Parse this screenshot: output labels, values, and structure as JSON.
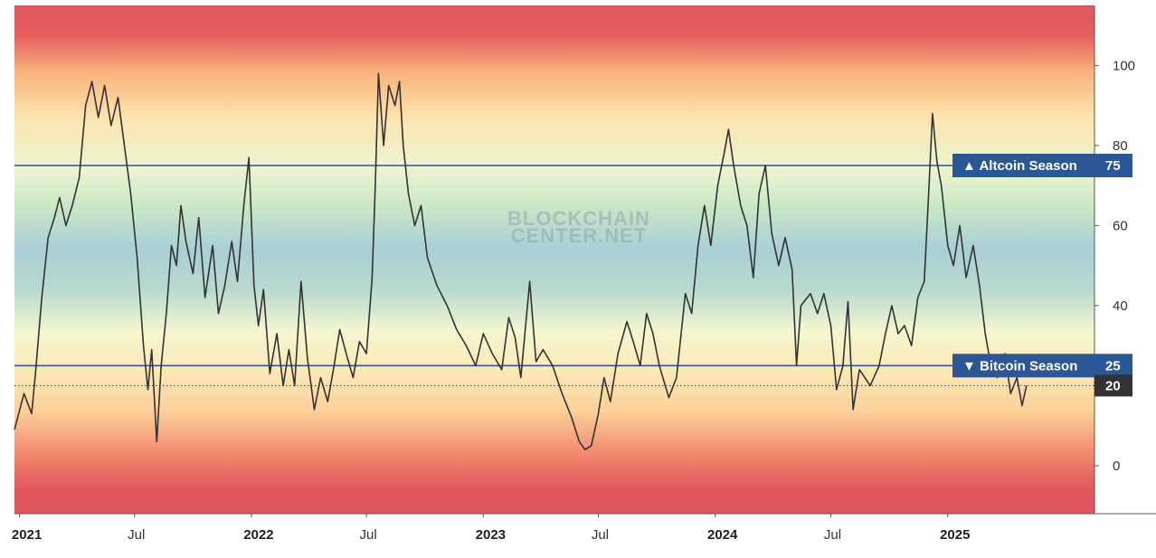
{
  "chart_data": {
    "type": "line",
    "watermark": [
      "BLOCKCHAIN",
      "CENTER.NET"
    ],
    "ylim": [
      -12,
      115
    ],
    "y_ticks": [
      0,
      20,
      40,
      60,
      80,
      100
    ],
    "x_range": [
      "2020-12-24",
      "2025-08-20"
    ],
    "x_ticks": [
      {
        "label": "2021",
        "date": "2021-01-01",
        "year": true
      },
      {
        "label": "Jul",
        "date": "2021-07-01",
        "year": false
      },
      {
        "label": "2022",
        "date": "2022-01-01",
        "year": true
      },
      {
        "label": "Jul",
        "date": "2022-07-01",
        "year": false
      },
      {
        "label": "2023",
        "date": "2023-01-01",
        "year": true
      },
      {
        "label": "Jul",
        "date": "2023-07-01",
        "year": false
      },
      {
        "label": "2024",
        "date": "2024-01-01",
        "year": true
      },
      {
        "label": "Jul",
        "date": "2024-07-01",
        "year": false
      },
      {
        "label": "2025",
        "date": "2025-01-01",
        "year": true
      }
    ],
    "thresholds": [
      {
        "name": "Altcoin Season",
        "symbol": "▲",
        "value": 75,
        "color": "#2b5797"
      },
      {
        "name": "Bitcoin Season",
        "symbol": "▼",
        "value": 25,
        "color": "#2b5797"
      }
    ],
    "current": {
      "value": 20,
      "label": "20"
    },
    "series": [
      {
        "color": "#333333",
        "points": [
          [
            "2020-12-24",
            9
          ],
          [
            "2021-01-08",
            18
          ],
          [
            "2021-01-20",
            13
          ],
          [
            "2021-01-26",
            23
          ],
          [
            "2021-02-05",
            42
          ],
          [
            "2021-02-15",
            57
          ],
          [
            "2021-02-25",
            62
          ],
          [
            "2021-03-05",
            67
          ],
          [
            "2021-03-15",
            60
          ],
          [
            "2021-03-25",
            65
          ],
          [
            "2021-04-05",
            72
          ],
          [
            "2021-04-15",
            90
          ],
          [
            "2021-04-25",
            96
          ],
          [
            "2021-05-05",
            87
          ],
          [
            "2021-05-15",
            95
          ],
          [
            "2021-05-25",
            85
          ],
          [
            "2021-06-05",
            92
          ],
          [
            "2021-06-15",
            80
          ],
          [
            "2021-06-25",
            68
          ],
          [
            "2021-07-05",
            52
          ],
          [
            "2021-07-15",
            30
          ],
          [
            "2021-07-22",
            19
          ],
          [
            "2021-07-28",
            29
          ],
          [
            "2021-08-05",
            6
          ],
          [
            "2021-08-12",
            25
          ],
          [
            "2021-08-20",
            38
          ],
          [
            "2021-08-28",
            55
          ],
          [
            "2021-09-05",
            50
          ],
          [
            "2021-09-12",
            65
          ],
          [
            "2021-09-20",
            56
          ],
          [
            "2021-10-01",
            48
          ],
          [
            "2021-10-10",
            62
          ],
          [
            "2021-10-20",
            42
          ],
          [
            "2021-11-01",
            55
          ],
          [
            "2021-11-10",
            38
          ],
          [
            "2021-11-20",
            45
          ],
          [
            "2021-12-01",
            56
          ],
          [
            "2021-12-10",
            46
          ],
          [
            "2021-12-20",
            65
          ],
          [
            "2021-12-28",
            77
          ],
          [
            "2022-01-05",
            45
          ],
          [
            "2022-01-12",
            35
          ],
          [
            "2022-01-20",
            44
          ],
          [
            "2022-01-30",
            23
          ],
          [
            "2022-02-10",
            33
          ],
          [
            "2022-02-20",
            20
          ],
          [
            "2022-03-01",
            29
          ],
          [
            "2022-03-10",
            20
          ],
          [
            "2022-03-20",
            46
          ],
          [
            "2022-03-30",
            27
          ],
          [
            "2022-04-10",
            14
          ],
          [
            "2022-04-20",
            22
          ],
          [
            "2022-05-01",
            16
          ],
          [
            "2022-05-10",
            24
          ],
          [
            "2022-05-20",
            34
          ],
          [
            "2022-06-01",
            27
          ],
          [
            "2022-06-10",
            22
          ],
          [
            "2022-06-20",
            31
          ],
          [
            "2022-07-01",
            28
          ],
          [
            "2022-07-10",
            47
          ],
          [
            "2022-07-15",
            70
          ],
          [
            "2022-07-20",
            98
          ],
          [
            "2022-07-28",
            80
          ],
          [
            "2022-08-05",
            95
          ],
          [
            "2022-08-15",
            90
          ],
          [
            "2022-08-22",
            96
          ],
          [
            "2022-08-28",
            80
          ],
          [
            "2022-09-05",
            68
          ],
          [
            "2022-09-15",
            60
          ],
          [
            "2022-09-25",
            65
          ],
          [
            "2022-10-05",
            52
          ],
          [
            "2022-10-20",
            45
          ],
          [
            "2022-11-05",
            40
          ],
          [
            "2022-11-20",
            34
          ],
          [
            "2022-12-05",
            30
          ],
          [
            "2022-12-20",
            25
          ],
          [
            "2023-01-01",
            33
          ],
          [
            "2023-01-15",
            28
          ],
          [
            "2023-01-30",
            24
          ],
          [
            "2023-02-10",
            37
          ],
          [
            "2023-02-20",
            32
          ],
          [
            "2023-03-01",
            22
          ],
          [
            "2023-03-15",
            46
          ],
          [
            "2023-03-25",
            26
          ],
          [
            "2023-04-05",
            29
          ],
          [
            "2023-04-20",
            25
          ],
          [
            "2023-05-05",
            18
          ],
          [
            "2023-05-20",
            12
          ],
          [
            "2023-06-01",
            6
          ],
          [
            "2023-06-10",
            4
          ],
          [
            "2023-06-20",
            5
          ],
          [
            "2023-07-01",
            13
          ],
          [
            "2023-07-10",
            22
          ],
          [
            "2023-07-20",
            16
          ],
          [
            "2023-08-01",
            28
          ],
          [
            "2023-08-15",
            36
          ],
          [
            "2023-08-25",
            31
          ],
          [
            "2023-09-05",
            25
          ],
          [
            "2023-09-15",
            38
          ],
          [
            "2023-09-25",
            33
          ],
          [
            "2023-10-05",
            25
          ],
          [
            "2023-10-20",
            17
          ],
          [
            "2023-11-01",
            22
          ],
          [
            "2023-11-15",
            43
          ],
          [
            "2023-11-25",
            38
          ],
          [
            "2023-12-05",
            55
          ],
          [
            "2023-12-15",
            65
          ],
          [
            "2023-12-25",
            55
          ],
          [
            "2024-01-05",
            70
          ],
          [
            "2024-01-15",
            78
          ],
          [
            "2024-01-22",
            84
          ],
          [
            "2024-01-30",
            75
          ],
          [
            "2024-02-10",
            65
          ],
          [
            "2024-02-20",
            60
          ],
          [
            "2024-03-01",
            47
          ],
          [
            "2024-03-10",
            68
          ],
          [
            "2024-03-20",
            75
          ],
          [
            "2024-03-30",
            58
          ],
          [
            "2024-04-10",
            50
          ],
          [
            "2024-04-20",
            57
          ],
          [
            "2024-05-01",
            49
          ],
          [
            "2024-05-08",
            25
          ],
          [
            "2024-05-15",
            40
          ],
          [
            "2024-05-30",
            43
          ],
          [
            "2024-06-10",
            38
          ],
          [
            "2024-06-20",
            43
          ],
          [
            "2024-07-01",
            35
          ],
          [
            "2024-07-10",
            19
          ],
          [
            "2024-07-20",
            25
          ],
          [
            "2024-07-28",
            41
          ],
          [
            "2024-08-05",
            14
          ],
          [
            "2024-08-15",
            24
          ],
          [
            "2024-09-01",
            20
          ],
          [
            "2024-09-15",
            25
          ],
          [
            "2024-09-25",
            33
          ],
          [
            "2024-10-05",
            40
          ],
          [
            "2024-10-15",
            33
          ],
          [
            "2024-10-25",
            35
          ],
          [
            "2024-11-05",
            30
          ],
          [
            "2024-11-15",
            42
          ],
          [
            "2024-11-25",
            46
          ],
          [
            "2024-12-01",
            65
          ],
          [
            "2024-12-08",
            88
          ],
          [
            "2024-12-15",
            76
          ],
          [
            "2024-12-22",
            70
          ],
          [
            "2025-01-01",
            55
          ],
          [
            "2025-01-10",
            50
          ],
          [
            "2025-01-20",
            60
          ],
          [
            "2025-01-30",
            47
          ],
          [
            "2025-02-10",
            55
          ],
          [
            "2025-02-20",
            45
          ],
          [
            "2025-03-01",
            33
          ],
          [
            "2025-03-10",
            25
          ],
          [
            "2025-03-20",
            22
          ],
          [
            "2025-04-01",
            28
          ],
          [
            "2025-04-10",
            18
          ],
          [
            "2025-04-20",
            22
          ],
          [
            "2025-04-28",
            15
          ],
          [
            "2025-05-05",
            20
          ]
        ]
      }
    ]
  }
}
